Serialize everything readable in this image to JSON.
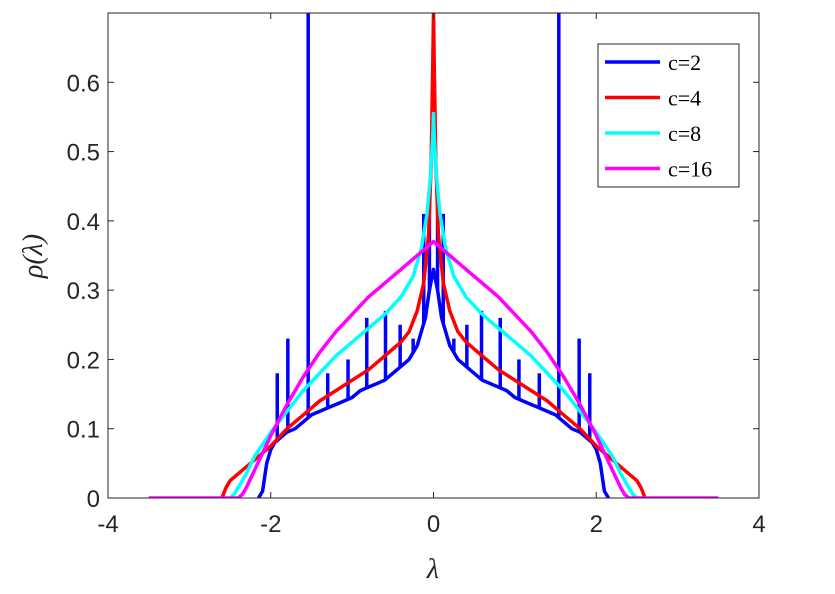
{
  "chart_data": {
    "type": "line",
    "title": "",
    "xlabel": "λ",
    "ylabel": "ρ(λ)",
    "xlim": [
      -4,
      4
    ],
    "ylim": [
      0,
      0.7
    ],
    "xticks": [
      -4,
      -2,
      0,
      2,
      4
    ],
    "yticks": [
      0,
      0.1,
      0.2,
      0.3,
      0.4,
      0.5,
      0.6
    ],
    "xtick_labels": [
      "-4",
      "-2",
      "0",
      "2",
      "4"
    ],
    "ytick_labels": [
      "0",
      "0.1",
      "0.2",
      "0.3",
      "0.4",
      "0.5",
      "0.6"
    ],
    "grid": false,
    "legend_position": "top-right",
    "series": [
      {
        "name": "c=2",
        "color": "#0000ff",
        "points": [
          [
            -2.15,
            0
          ],
          [
            -2.1,
            0.01
          ],
          [
            -2.05,
            0.05
          ],
          [
            -2.0,
            0.07
          ],
          [
            -1.95,
            0.08
          ],
          [
            -1.9,
            0.085
          ],
          [
            -1.85,
            0.09
          ],
          [
            -1.8,
            0.095
          ],
          [
            -1.7,
            0.1
          ],
          [
            -1.6,
            0.11
          ],
          [
            -1.5,
            0.12
          ],
          [
            -1.4,
            0.125
          ],
          [
            -1.3,
            0.13
          ],
          [
            -1.2,
            0.135
          ],
          [
            -1.1,
            0.14
          ],
          [
            -1.0,
            0.145
          ],
          [
            -0.9,
            0.155
          ],
          [
            -0.8,
            0.16
          ],
          [
            -0.7,
            0.165
          ],
          [
            -0.6,
            0.17
          ],
          [
            -0.5,
            0.18
          ],
          [
            -0.4,
            0.19
          ],
          [
            -0.3,
            0.2
          ],
          [
            -0.2,
            0.22
          ],
          [
            -0.1,
            0.26
          ],
          [
            -0.05,
            0.3
          ],
          [
            0,
            0.33
          ],
          [
            0.05,
            0.3
          ],
          [
            0.1,
            0.26
          ],
          [
            0.2,
            0.22
          ],
          [
            0.3,
            0.2
          ],
          [
            0.4,
            0.19
          ],
          [
            0.5,
            0.18
          ],
          [
            0.6,
            0.17
          ],
          [
            0.7,
            0.165
          ],
          [
            0.8,
            0.16
          ],
          [
            0.9,
            0.155
          ],
          [
            1.0,
            0.145
          ],
          [
            1.1,
            0.14
          ],
          [
            1.2,
            0.135
          ],
          [
            1.3,
            0.13
          ],
          [
            1.4,
            0.125
          ],
          [
            1.5,
            0.12
          ],
          [
            1.6,
            0.11
          ],
          [
            1.7,
            0.1
          ],
          [
            1.8,
            0.095
          ],
          [
            1.85,
            0.09
          ],
          [
            1.9,
            0.085
          ],
          [
            1.95,
            0.08
          ],
          [
            2.0,
            0.07
          ],
          [
            2.05,
            0.05
          ],
          [
            2.1,
            0.01
          ],
          [
            2.15,
            0
          ]
        ],
        "spikes": [
          [
            -1.54,
            0.7
          ],
          [
            1.54,
            0.7
          ],
          [
            -1.79,
            0.23
          ],
          [
            1.79,
            0.23
          ],
          [
            -1.92,
            0.18
          ],
          [
            1.92,
            0.18
          ],
          [
            -0.82,
            0.26
          ],
          [
            0.82,
            0.26
          ],
          [
            -0.59,
            0.27
          ],
          [
            0.59,
            0.27
          ],
          [
            -0.41,
            0.25
          ],
          [
            0.41,
            0.25
          ],
          [
            -0.12,
            0.41
          ],
          [
            0.12,
            0.41
          ],
          [
            -0.05,
            0.42
          ],
          [
            0.05,
            0.42
          ],
          [
            -1.3,
            0.18
          ],
          [
            1.3,
            0.18
          ],
          [
            -1.05,
            0.2
          ],
          [
            1.05,
            0.2
          ],
          [
            -0.25,
            0.23
          ],
          [
            0.25,
            0.23
          ]
        ]
      },
      {
        "name": "c=4",
        "color": "#ff0000",
        "points": [
          [
            -2.6,
            0
          ],
          [
            -2.55,
            0.015
          ],
          [
            -2.5,
            0.025
          ],
          [
            -2.4,
            0.035
          ],
          [
            -2.2,
            0.055
          ],
          [
            -2.0,
            0.075
          ],
          [
            -1.8,
            0.1
          ],
          [
            -1.6,
            0.12
          ],
          [
            -1.4,
            0.14
          ],
          [
            -1.2,
            0.155
          ],
          [
            -1.0,
            0.17
          ],
          [
            -0.8,
            0.185
          ],
          [
            -0.6,
            0.205
          ],
          [
            -0.4,
            0.225
          ],
          [
            -0.3,
            0.24
          ],
          [
            -0.2,
            0.27
          ],
          [
            -0.12,
            0.31
          ],
          [
            -0.06,
            0.38
          ],
          [
            -0.03,
            0.48
          ],
          [
            -0.01,
            0.62
          ],
          [
            0,
            0.7
          ],
          [
            0.01,
            0.62
          ],
          [
            0.03,
            0.48
          ],
          [
            0.06,
            0.38
          ],
          [
            0.12,
            0.31
          ],
          [
            0.2,
            0.27
          ],
          [
            0.3,
            0.24
          ],
          [
            0.4,
            0.225
          ],
          [
            0.6,
            0.205
          ],
          [
            0.8,
            0.185
          ],
          [
            1.0,
            0.17
          ],
          [
            1.2,
            0.155
          ],
          [
            1.4,
            0.14
          ],
          [
            1.6,
            0.12
          ],
          [
            1.8,
            0.1
          ],
          [
            2.0,
            0.075
          ],
          [
            2.2,
            0.055
          ],
          [
            2.4,
            0.035
          ],
          [
            2.5,
            0.025
          ],
          [
            2.55,
            0.015
          ],
          [
            2.6,
            0
          ]
        ]
      },
      {
        "name": "c=8",
        "color": "#00ffff",
        "points": [
          [
            -2.5,
            0
          ],
          [
            -2.45,
            0.005
          ],
          [
            -2.4,
            0.015
          ],
          [
            -2.3,
            0.035
          ],
          [
            -2.2,
            0.06
          ],
          [
            -2.0,
            0.095
          ],
          [
            -1.8,
            0.125
          ],
          [
            -1.6,
            0.155
          ],
          [
            -1.4,
            0.18
          ],
          [
            -1.2,
            0.205
          ],
          [
            -1.0,
            0.225
          ],
          [
            -0.8,
            0.245
          ],
          [
            -0.6,
            0.265
          ],
          [
            -0.4,
            0.29
          ],
          [
            -0.25,
            0.32
          ],
          [
            -0.15,
            0.36
          ],
          [
            -0.08,
            0.41
          ],
          [
            -0.04,
            0.46
          ],
          [
            -0.01,
            0.52
          ],
          [
            0,
            0.555
          ],
          [
            0.01,
            0.52
          ],
          [
            0.04,
            0.46
          ],
          [
            0.08,
            0.41
          ],
          [
            0.15,
            0.36
          ],
          [
            0.25,
            0.32
          ],
          [
            0.4,
            0.29
          ],
          [
            0.6,
            0.265
          ],
          [
            0.8,
            0.245
          ],
          [
            1.0,
            0.225
          ],
          [
            1.2,
            0.205
          ],
          [
            1.4,
            0.18
          ],
          [
            1.6,
            0.155
          ],
          [
            1.8,
            0.125
          ],
          [
            2.0,
            0.095
          ],
          [
            2.2,
            0.06
          ],
          [
            2.3,
            0.035
          ],
          [
            2.4,
            0.015
          ],
          [
            2.45,
            0.005
          ],
          [
            2.5,
            0
          ]
        ]
      },
      {
        "name": "c=16",
        "color": "#ff00ff",
        "points": [
          [
            -3.5,
            0
          ],
          [
            -2.4,
            0
          ],
          [
            -2.35,
            0.005
          ],
          [
            -2.3,
            0.015
          ],
          [
            -2.2,
            0.04
          ],
          [
            -2.1,
            0.065
          ],
          [
            -2.0,
            0.09
          ],
          [
            -1.8,
            0.135
          ],
          [
            -1.6,
            0.175
          ],
          [
            -1.4,
            0.21
          ],
          [
            -1.2,
            0.24
          ],
          [
            -1.0,
            0.265
          ],
          [
            -0.8,
            0.29
          ],
          [
            -0.6,
            0.31
          ],
          [
            -0.4,
            0.33
          ],
          [
            -0.2,
            0.35
          ],
          [
            -0.1,
            0.36
          ],
          [
            0,
            0.37
          ],
          [
            0.1,
            0.36
          ],
          [
            0.2,
            0.35
          ],
          [
            0.4,
            0.33
          ],
          [
            0.6,
            0.31
          ],
          [
            0.8,
            0.29
          ],
          [
            1.0,
            0.265
          ],
          [
            1.2,
            0.24
          ],
          [
            1.4,
            0.21
          ],
          [
            1.6,
            0.175
          ],
          [
            1.8,
            0.135
          ],
          [
            2.0,
            0.09
          ],
          [
            2.1,
            0.065
          ],
          [
            2.2,
            0.04
          ],
          [
            2.3,
            0.015
          ],
          [
            2.35,
            0.005
          ],
          [
            2.4,
            0
          ],
          [
            3.5,
            0
          ]
        ]
      }
    ]
  }
}
